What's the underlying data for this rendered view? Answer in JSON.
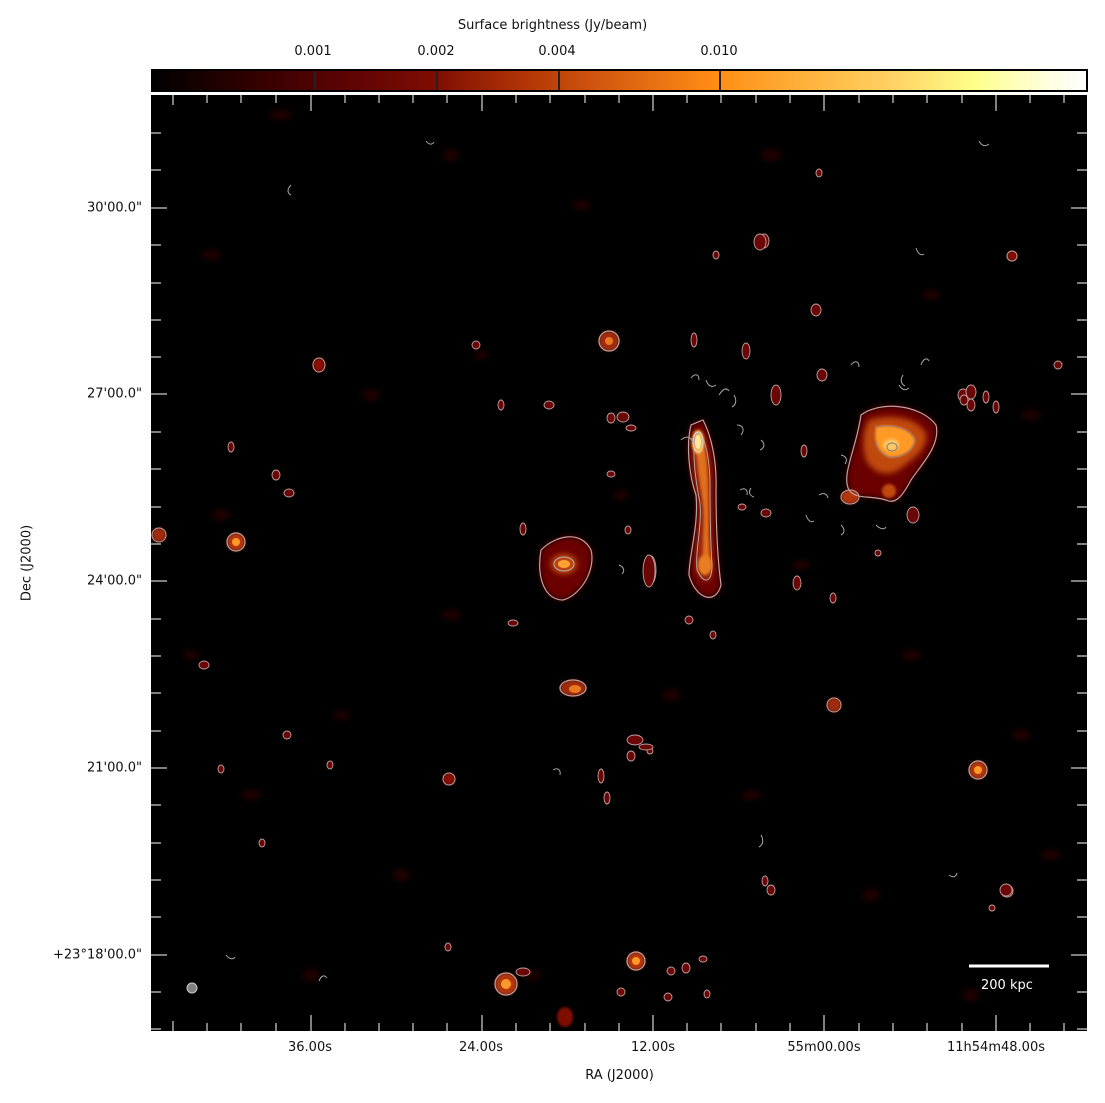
{
  "colorbar": {
    "title": "Surface brightness (Jy/beam)",
    "ticks": [
      "0.001",
      "0.002",
      "0.004",
      "0.010"
    ]
  },
  "axes": {
    "xlabel": "RA (J2000)",
    "ylabel": "Dec (J2000)",
    "xticks": [
      "36.00s",
      "24.00s",
      "12.00s",
      "55m00.00s",
      "11h54m48.00s"
    ],
    "yticks": [
      "30'00.0\"",
      "27'00.0\"",
      "24'00.0\"",
      "21'00.0\"",
      "+23°18'00.0\""
    ]
  },
  "scalebar": {
    "label": "200 kpc"
  },
  "colors": {
    "background": "#000000",
    "contour": "#b0b0b0",
    "emission_low": "#5a0303",
    "emission_high": "#ffd566"
  }
}
